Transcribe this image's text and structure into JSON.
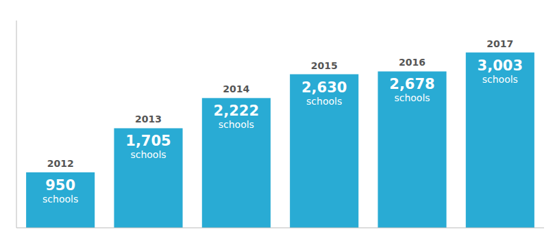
{
  "chart_data": {
    "type": "bar",
    "categories": [
      "2012",
      "2013",
      "2014",
      "2015",
      "2016",
      "2017"
    ],
    "values": [
      950,
      1705,
      2222,
      2630,
      2678,
      3003
    ],
    "value_labels": [
      "950",
      "1,705",
      "2,222",
      "2,630",
      "2,678",
      "3,003"
    ],
    "annotations": [
      "schools"
    ],
    "color": "#29ABD4",
    "ylim": [
      0,
      3550
    ],
    "grid": false,
    "data_labels": true,
    "tick_labels": "x"
  }
}
